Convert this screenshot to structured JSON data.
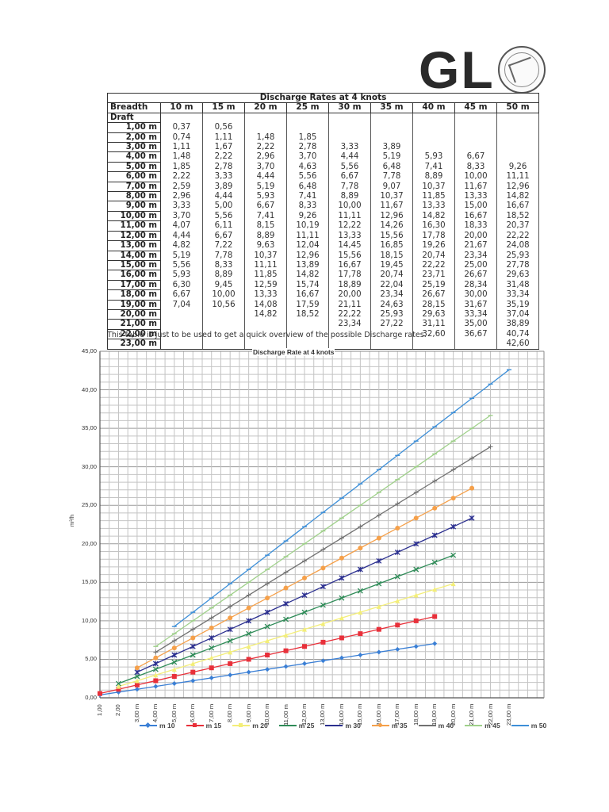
{
  "logo": {
    "text": "GL",
    "seal": "company-seal-icon"
  },
  "table": {
    "title": "Discharge Rates at 4 knots",
    "breadth_label": "Breadth",
    "draft_label": "Draft",
    "columns": [
      "10 m",
      "15 m",
      "20 m",
      "25 m",
      "30 m",
      "35 m",
      "40 m",
      "45 m",
      "50 m"
    ],
    "rows": [
      {
        "draft": "1,00 m",
        "values": [
          "0,37",
          "0,56",
          "",
          "",
          "",
          "",
          "",
          "",
          ""
        ]
      },
      {
        "draft": "2,00 m",
        "values": [
          "0,74",
          "1,11",
          "1,48",
          "1,85",
          "",
          "",
          "",
          "",
          ""
        ]
      },
      {
        "draft": "3,00 m",
        "values": [
          "1,11",
          "1,67",
          "2,22",
          "2,78",
          "3,33",
          "3,89",
          "",
          "",
          ""
        ]
      },
      {
        "draft": "4,00 m",
        "values": [
          "1,48",
          "2,22",
          "2,96",
          "3,70",
          "4,44",
          "5,19",
          "5,93",
          "6,67",
          ""
        ]
      },
      {
        "draft": "5,00 m",
        "values": [
          "1,85",
          "2,78",
          "3,70",
          "4,63",
          "5,56",
          "6,48",
          "7,41",
          "8,33",
          "9,26"
        ]
      },
      {
        "draft": "6,00 m",
        "values": [
          "2,22",
          "3,33",
          "4,44",
          "5,56",
          "6,67",
          "7,78",
          "8,89",
          "10,00",
          "11,11"
        ]
      },
      {
        "draft": "7,00 m",
        "values": [
          "2,59",
          "3,89",
          "5,19",
          "6,48",
          "7,78",
          "9,07",
          "10,37",
          "11,67",
          "12,96"
        ]
      },
      {
        "draft": "8,00 m",
        "values": [
          "2,96",
          "4,44",
          "5,93",
          "7,41",
          "8,89",
          "10,37",
          "11,85",
          "13,33",
          "14,82"
        ]
      },
      {
        "draft": "9,00 m",
        "values": [
          "3,33",
          "5,00",
          "6,67",
          "8,33",
          "10,00",
          "11,67",
          "13,33",
          "15,00",
          "16,67"
        ]
      },
      {
        "draft": "10,00 m",
        "values": [
          "3,70",
          "5,56",
          "7,41",
          "9,26",
          "11,11",
          "12,96",
          "14,82",
          "16,67",
          "18,52"
        ]
      },
      {
        "draft": "11,00 m",
        "values": [
          "4,07",
          "6,11",
          "8,15",
          "10,19",
          "12,22",
          "14,26",
          "16,30",
          "18,33",
          "20,37"
        ]
      },
      {
        "draft": "12,00 m",
        "values": [
          "4,44",
          "6,67",
          "8,89",
          "11,11",
          "13,33",
          "15,56",
          "17,78",
          "20,00",
          "22,22"
        ]
      },
      {
        "draft": "13,00 m",
        "values": [
          "4,82",
          "7,22",
          "9,63",
          "12,04",
          "14,45",
          "16,85",
          "19,26",
          "21,67",
          "24,08"
        ]
      },
      {
        "draft": "14,00 m",
        "values": [
          "5,19",
          "7,78",
          "10,37",
          "12,96",
          "15,56",
          "18,15",
          "20,74",
          "23,34",
          "25,93"
        ]
      },
      {
        "draft": "15,00 m",
        "values": [
          "5,56",
          "8,33",
          "11,11",
          "13,89",
          "16,67",
          "19,45",
          "22,22",
          "25,00",
          "27,78"
        ]
      },
      {
        "draft": "16,00 m",
        "values": [
          "5,93",
          "8,89",
          "11,85",
          "14,82",
          "17,78",
          "20,74",
          "23,71",
          "26,67",
          "29,63"
        ]
      },
      {
        "draft": "17,00 m",
        "values": [
          "6,30",
          "9,45",
          "12,59",
          "15,74",
          "18,89",
          "22,04",
          "25,19",
          "28,34",
          "31,48"
        ]
      },
      {
        "draft": "18,00 m",
        "values": [
          "6,67",
          "10,00",
          "13,33",
          "16,67",
          "20,00",
          "23,34",
          "26,67",
          "30,00",
          "33,34"
        ]
      },
      {
        "draft": "19,00 m",
        "values": [
          "7,04",
          "10,56",
          "14,08",
          "17,59",
          "21,11",
          "24,63",
          "28,15",
          "31,67",
          "35,19"
        ]
      },
      {
        "draft": "20,00 m",
        "values": [
          "",
          "",
          "14,82",
          "18,52",
          "22,22",
          "25,93",
          "29,63",
          "33,34",
          "37,04"
        ]
      },
      {
        "draft": "21,00 m",
        "values": [
          "",
          "",
          "",
          "",
          "23,34",
          "27,22",
          "31,11",
          "35,00",
          "38,89"
        ]
      },
      {
        "draft": "22,00 m",
        "values": [
          "",
          "",
          "",
          "",
          "",
          "",
          "32,60",
          "36,67",
          "40,74"
        ]
      },
      {
        "draft": "23,00 m",
        "values": [
          "",
          "",
          "",
          "",
          "",
          "",
          "",
          "",
          "42,60"
        ]
      }
    ],
    "note": "This table is just to be used to get a quick overview of the possible Discharge rates."
  },
  "chart_data": {
    "type": "line",
    "title": "Discharge Rate at 4 knots",
    "xlabel": "",
    "ylabel": "m³/h",
    "ylim": [
      0,
      45
    ],
    "yticks": [
      "0,00",
      "5,00",
      "10,00",
      "15,00",
      "20,00",
      "25,00",
      "30,00",
      "35,00",
      "40,00",
      "45,00"
    ],
    "grid": true,
    "legend_position": "bottom",
    "x": [
      1,
      2,
      3,
      4,
      5,
      6,
      7,
      8,
      9,
      10,
      11,
      12,
      13,
      14,
      15,
      16,
      17,
      18,
      19,
      20,
      21,
      22,
      23
    ],
    "xtick_labels": [
      "1,00",
      "2,00",
      "3,00 m",
      "4,00 m",
      "5,00 m",
      "6,00 m",
      "7,00 m",
      "8,00 m",
      "9,00 m",
      "10,00 m",
      "11,00 m",
      "12,00 m",
      "13,00 m",
      "14,00 m",
      "15,00 m",
      "16,00 m",
      "17,00 m",
      "18,00 m",
      "19,00 m",
      "20,00 m",
      "21,00 m",
      "22,00 m",
      "23,00 m"
    ],
    "series": [
      {
        "name": "m 10",
        "color": "#3a7fd5",
        "marker": "diamond",
        "values": [
          0.37,
          0.74,
          1.11,
          1.48,
          1.85,
          2.22,
          2.59,
          2.96,
          3.33,
          3.7,
          4.07,
          4.44,
          4.82,
          5.19,
          5.56,
          5.93,
          6.3,
          6.67,
          7.04,
          null,
          null,
          null,
          null
        ]
      },
      {
        "name": "m 15",
        "color": "#e8303a",
        "marker": "square",
        "values": [
          0.56,
          1.11,
          1.67,
          2.22,
          2.78,
          3.33,
          3.89,
          4.44,
          5.0,
          5.56,
          6.11,
          6.67,
          7.22,
          7.78,
          8.33,
          8.89,
          9.45,
          10.0,
          10.56,
          null,
          null,
          null,
          null
        ]
      },
      {
        "name": "m 20",
        "color": "#f3ee78",
        "marker": "triangle",
        "values": [
          null,
          1.48,
          2.22,
          2.96,
          3.7,
          4.44,
          5.19,
          5.93,
          6.67,
          7.41,
          8.15,
          8.89,
          9.63,
          10.37,
          11.11,
          11.85,
          12.59,
          13.33,
          14.08,
          14.82,
          null,
          null,
          null
        ]
      },
      {
        "name": "m 25",
        "color": "#2e8b57",
        "marker": "x",
        "values": [
          null,
          1.85,
          2.78,
          3.7,
          4.63,
          5.56,
          6.48,
          7.41,
          8.33,
          9.26,
          10.19,
          11.11,
          12.04,
          12.96,
          13.89,
          14.82,
          15.74,
          16.67,
          17.59,
          18.52,
          null,
          null,
          null
        ]
      },
      {
        "name": "m 30",
        "color": "#2b2f8f",
        "marker": "star",
        "values": [
          null,
          null,
          3.33,
          4.44,
          5.56,
          6.67,
          7.78,
          8.89,
          10.0,
          11.11,
          12.22,
          13.33,
          14.45,
          15.56,
          16.67,
          17.78,
          18.89,
          20.0,
          21.11,
          22.22,
          23.34,
          null,
          null
        ]
      },
      {
        "name": "m 35",
        "color": "#f5a04a",
        "marker": "circle",
        "values": [
          null,
          null,
          3.89,
          5.19,
          6.48,
          7.78,
          9.07,
          10.37,
          11.67,
          12.96,
          14.26,
          15.56,
          16.85,
          18.15,
          19.45,
          20.74,
          22.04,
          23.34,
          24.63,
          25.93,
          27.22,
          null,
          null
        ]
      },
      {
        "name": "m 40",
        "color": "#707070",
        "marker": "plus",
        "values": [
          null,
          null,
          null,
          5.93,
          7.41,
          8.89,
          10.37,
          11.85,
          13.33,
          14.82,
          16.3,
          17.78,
          19.26,
          20.74,
          22.22,
          23.71,
          25.19,
          26.67,
          28.15,
          29.63,
          31.11,
          32.6,
          null
        ]
      },
      {
        "name": "m 45",
        "color": "#9fd08a",
        "marker": "dash",
        "values": [
          null,
          null,
          null,
          6.67,
          8.33,
          10.0,
          11.67,
          13.33,
          15.0,
          16.67,
          18.33,
          20.0,
          21.67,
          23.34,
          25.0,
          26.67,
          28.34,
          30.0,
          31.67,
          33.34,
          35.0,
          36.67,
          null
        ]
      },
      {
        "name": "m 50",
        "color": "#3d8fd8",
        "marker": "dash",
        "values": [
          null,
          null,
          null,
          null,
          9.26,
          11.11,
          12.96,
          14.82,
          16.67,
          18.52,
          20.37,
          22.22,
          24.08,
          25.93,
          27.78,
          29.63,
          31.48,
          33.34,
          35.19,
          37.04,
          38.89,
          40.74,
          42.6
        ]
      }
    ]
  }
}
